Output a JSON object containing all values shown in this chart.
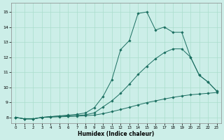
{
  "background_color": "#cceee8",
  "grid_color": "#aaddcc",
  "line_color": "#1a6e60",
  "xlabel": "Humidex (Indice chaleur)",
  "xlim": [
    -0.5,
    23.5
  ],
  "ylim": [
    7.6,
    15.6
  ],
  "xticks": [
    0,
    1,
    2,
    3,
    4,
    5,
    6,
    7,
    8,
    9,
    10,
    11,
    12,
    13,
    14,
    15,
    16,
    17,
    18,
    19,
    20,
    21,
    22,
    23
  ],
  "yticks": [
    8,
    9,
    10,
    11,
    12,
    13,
    14,
    15
  ],
  "series1_x": [
    0,
    1,
    2,
    3,
    4,
    5,
    6,
    7,
    8,
    9,
    10,
    11,
    12,
    13,
    14,
    15,
    16,
    17,
    18,
    19,
    20,
    21,
    22,
    23
  ],
  "series1_y": [
    8.0,
    7.9,
    7.9,
    8.0,
    8.05,
    8.1,
    8.15,
    8.2,
    8.3,
    8.65,
    9.4,
    10.5,
    12.5,
    13.1,
    14.9,
    15.0,
    13.8,
    14.0,
    13.65,
    13.65,
    12.0,
    10.8,
    10.35,
    9.75
  ],
  "series2_x": [
    0,
    1,
    2,
    3,
    4,
    5,
    6,
    7,
    8,
    9,
    10,
    11,
    12,
    13,
    14,
    15,
    16,
    17,
    18,
    19,
    20,
    21,
    22,
    23
  ],
  "series2_y": [
    8.0,
    7.9,
    7.9,
    8.0,
    8.05,
    8.08,
    8.1,
    8.13,
    8.17,
    8.3,
    8.7,
    9.1,
    9.6,
    10.2,
    10.85,
    11.4,
    11.9,
    12.3,
    12.55,
    12.55,
    12.0,
    10.8,
    10.35,
    9.75
  ],
  "series3_x": [
    0,
    1,
    2,
    3,
    4,
    5,
    6,
    7,
    8,
    9,
    10,
    11,
    12,
    13,
    14,
    15,
    16,
    17,
    18,
    19,
    20,
    21,
    22,
    23
  ],
  "series3_y": [
    8.0,
    7.9,
    7.9,
    8.0,
    8.02,
    8.04,
    8.06,
    8.08,
    8.11,
    8.15,
    8.25,
    8.38,
    8.52,
    8.67,
    8.83,
    8.98,
    9.1,
    9.22,
    9.33,
    9.42,
    9.5,
    9.55,
    9.6,
    9.65
  ]
}
